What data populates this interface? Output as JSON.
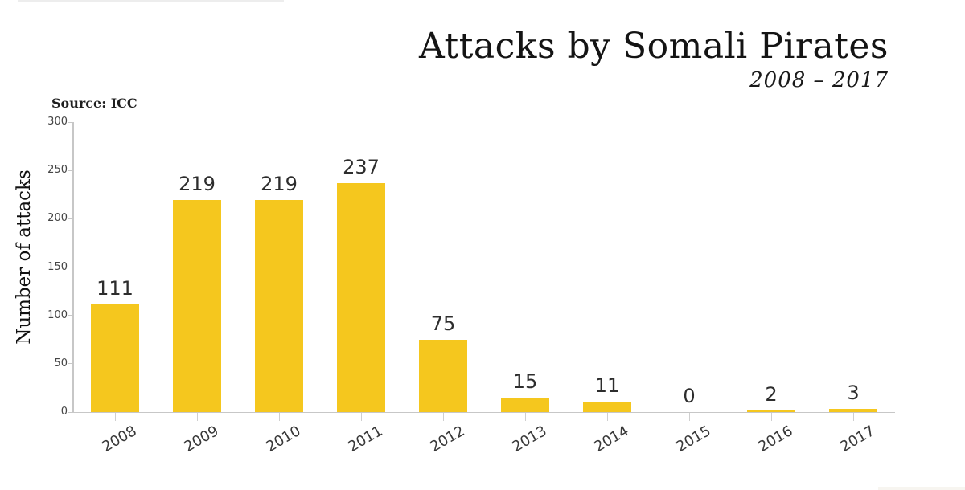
{
  "page": {
    "title": "Attacks by Somali Pirates",
    "subtitle": "2008 – 2017",
    "source": "Source: ICC",
    "y_axis_title": "Number of attacks"
  },
  "colors": {
    "bar": "#F5C71E",
    "axis_line": "#C7C7C7",
    "title_text": "#141414",
    "value_label_text": "#2D2D2D",
    "tick_label_text": "#454545"
  },
  "chart_data": {
    "type": "bar",
    "title": "Attacks by Somali Pirates",
    "subtitle": "2008 – 2017",
    "source": "Source: ICC",
    "xlabel": "",
    "ylabel": "Number of attacks",
    "categories": [
      "2008",
      "2009",
      "2010",
      "2011",
      "2012",
      "2013",
      "2014",
      "2015",
      "2016",
      "2017"
    ],
    "values": [
      111,
      219,
      219,
      237,
      75,
      15,
      11,
      0,
      2,
      3
    ],
    "ylim": [
      0,
      300
    ],
    "yticks": [
      0,
      50,
      100,
      150,
      200,
      250,
      300
    ],
    "bar_color": "#F5C71E",
    "grid": false,
    "legend": "none",
    "data_labels": true,
    "x_tick_rotation_deg": -30
  }
}
